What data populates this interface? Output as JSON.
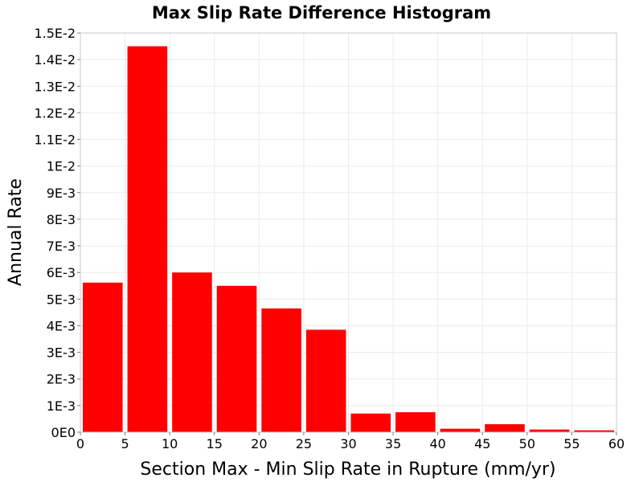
{
  "chart_data": {
    "type": "bar",
    "title": "Max Slip Rate Difference Histogram",
    "xlabel": "Section Max - Min Slip Rate in Rupture (mm/yr)",
    "ylabel": "Annual Rate",
    "xlim": [
      0,
      60
    ],
    "ylim": [
      0,
      0.015
    ],
    "bin_width": 5,
    "bins": [
      {
        "x0": 0,
        "x1": 5,
        "value": 0.00562
      },
      {
        "x0": 5,
        "x1": 10,
        "value": 0.0145
      },
      {
        "x0": 10,
        "x1": 15,
        "value": 0.006
      },
      {
        "x0": 15,
        "x1": 20,
        "value": 0.0055
      },
      {
        "x0": 20,
        "x1": 25,
        "value": 0.00465
      },
      {
        "x0": 25,
        "x1": 30,
        "value": 0.00385
      },
      {
        "x0": 30,
        "x1": 35,
        "value": 0.0007
      },
      {
        "x0": 35,
        "x1": 40,
        "value": 0.00075
      },
      {
        "x0": 40,
        "x1": 45,
        "value": 0.00013
      },
      {
        "x0": 45,
        "x1": 50,
        "value": 0.0003
      },
      {
        "x0": 50,
        "x1": 55,
        "value": 0.0001
      },
      {
        "x0": 55,
        "x1": 60,
        "value": 7e-05
      }
    ],
    "x_ticks": [
      {
        "value": 0,
        "label": "0"
      },
      {
        "value": 5,
        "label": "5"
      },
      {
        "value": 10,
        "label": "10"
      },
      {
        "value": 15,
        "label": "15"
      },
      {
        "value": 20,
        "label": "20"
      },
      {
        "value": 25,
        "label": "25"
      },
      {
        "value": 30,
        "label": "30"
      },
      {
        "value": 35,
        "label": "35"
      },
      {
        "value": 40,
        "label": "40"
      },
      {
        "value": 45,
        "label": "45"
      },
      {
        "value": 50,
        "label": "50"
      },
      {
        "value": 55,
        "label": "55"
      },
      {
        "value": 60,
        "label": "60"
      }
    ],
    "y_ticks": [
      {
        "value": 0,
        "label": "0E0"
      },
      {
        "value": 0.001,
        "label": "1E-3"
      },
      {
        "value": 0.002,
        "label": "2E-3"
      },
      {
        "value": 0.003,
        "label": "3E-3"
      },
      {
        "value": 0.004,
        "label": "4E-3"
      },
      {
        "value": 0.005,
        "label": "5E-3"
      },
      {
        "value": 0.006,
        "label": "6E-3"
      },
      {
        "value": 0.007,
        "label": "7E-3"
      },
      {
        "value": 0.008,
        "label": "8E-3"
      },
      {
        "value": 0.009,
        "label": "9E-3"
      },
      {
        "value": 0.01,
        "label": "1E-2"
      },
      {
        "value": 0.011,
        "label": "1.1E-2"
      },
      {
        "value": 0.012,
        "label": "1.2E-2"
      },
      {
        "value": 0.013,
        "label": "1.3E-2"
      },
      {
        "value": 0.014,
        "label": "1.4E-2"
      },
      {
        "value": 0.015,
        "label": "1.5E-2"
      }
    ],
    "grid": true,
    "bar_color": "#ff0000",
    "legend": "none"
  }
}
